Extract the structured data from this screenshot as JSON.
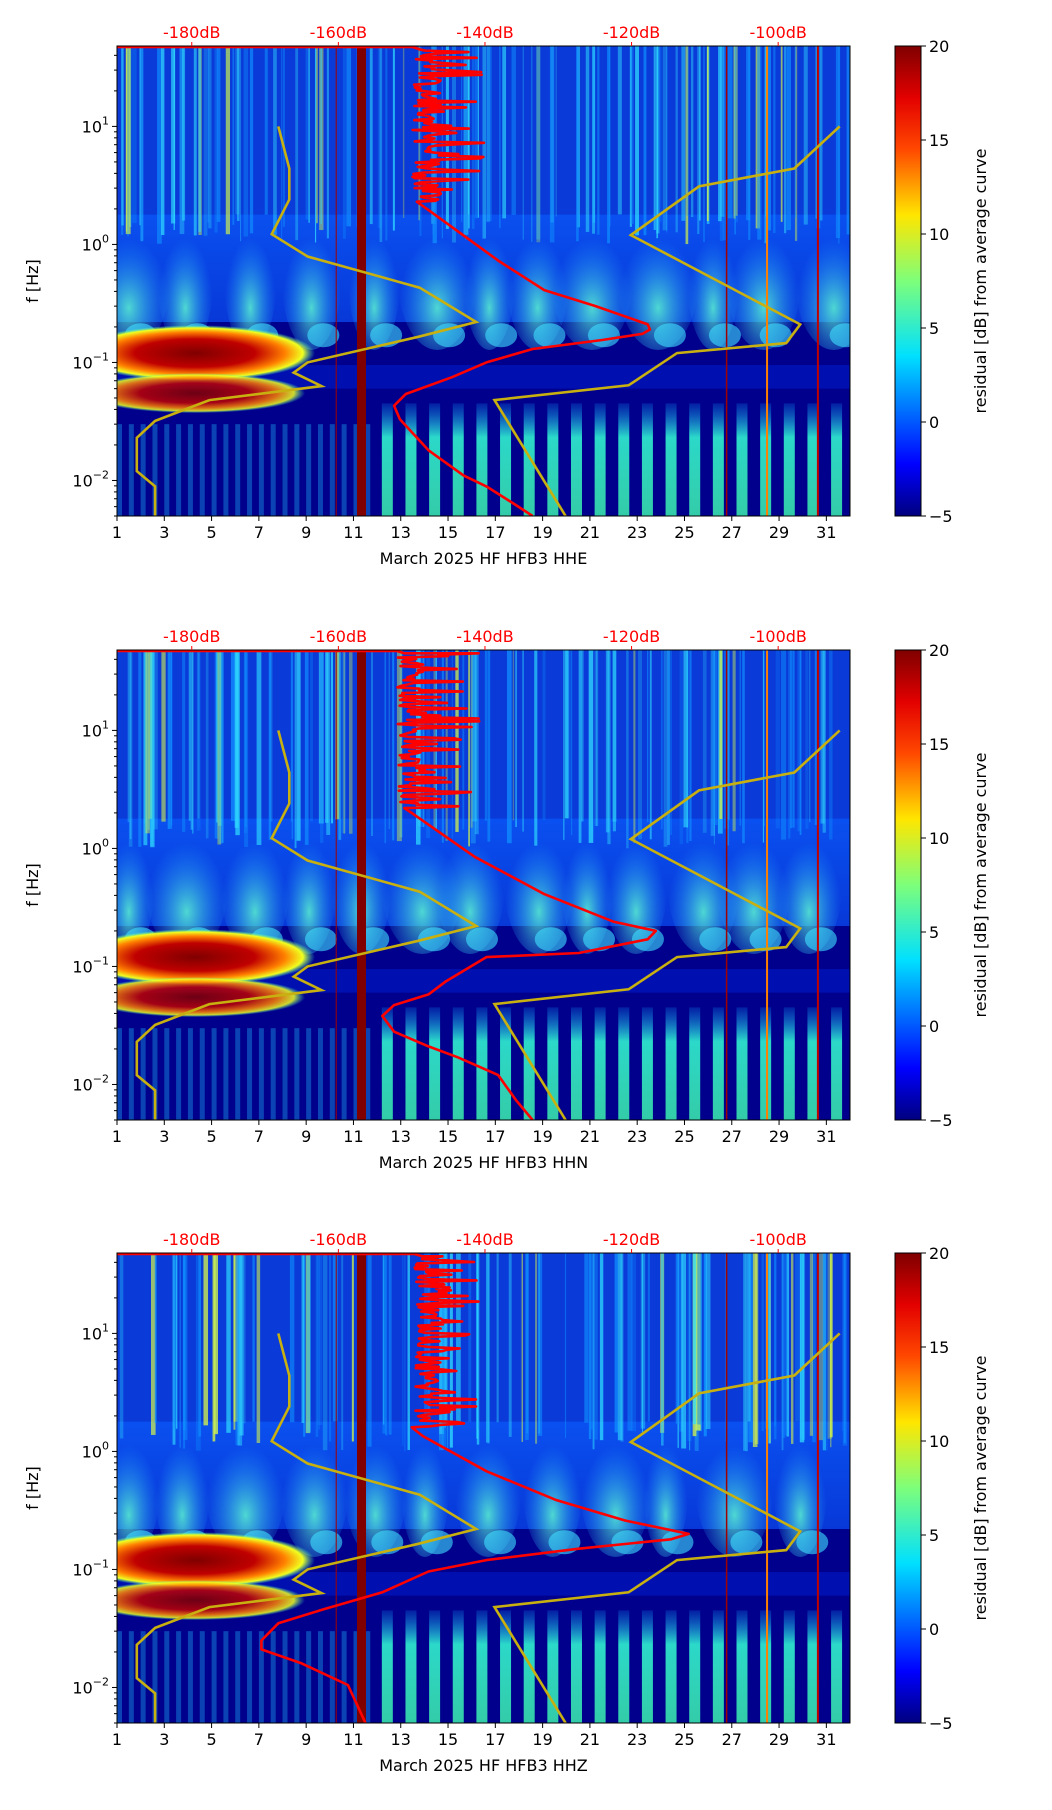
{
  "colors": {
    "psd": "#ff0000",
    "noise_model": "#c8b010",
    "top_axis_text": "#ff0000",
    "band": "#800000"
  },
  "chart_data": [
    {
      "type": "heatmap",
      "panel": "HHE",
      "xlabel": "March 2025 HF HFB3  HHE",
      "ylabel": "f [Hz]",
      "xlim": [
        1,
        32
      ],
      "ylim": [
        0.005,
        48
      ],
      "yscale": "log",
      "x_ticks": [
        1,
        3,
        5,
        7,
        9,
        11,
        13,
        15,
        17,
        19,
        21,
        23,
        25,
        27,
        29,
        31
      ],
      "x_tick_labels": [
        "1",
        "3",
        "5",
        "7",
        "9",
        "11",
        "13",
        "15",
        "17",
        "19",
        "21",
        "23",
        "25",
        "27",
        "29",
        "31"
      ],
      "y_ticks": [
        0.01,
        0.1,
        1,
        10
      ],
      "y_tick_base": "10",
      "y_tick_exponents": [
        "−2",
        "−1",
        "0",
        "1"
      ],
      "top_axis": {
        "range_db": [
          -190.2,
          -90.2
        ],
        "ticks": [
          -180,
          -160,
          -140,
          -120,
          -100
        ],
        "labels": [
          "-180dB",
          "-160dB",
          "-140dB",
          "-120dB",
          "-100dB"
        ]
      },
      "colorbar": {
        "label": "residual [dB] from average curve",
        "range": [
          -5,
          20
        ],
        "ticks": [
          20,
          15,
          10,
          5,
          0,
          -5
        ],
        "tick_labels": [
          "20",
          "15",
          "10",
          "5",
          "0",
          "−5"
        ],
        "colormap": "jet"
      },
      "psd_noise": {
        "f_from": 45,
        "f_to": 2.3,
        "db_range": [
          -151.9,
          -139.8
        ]
      },
      "series": [
        {
          "name": "psd",
          "points": [
            [
              2.3,
              -149.3
            ],
            [
              1.8,
              -146.9
            ],
            [
              0.73,
              -138.2
            ],
            [
              0.41,
              -131.9
            ],
            [
              0.3,
              -124.9
            ],
            [
              0.21,
              -117.8
            ],
            [
              0.19,
              -117.5
            ],
            [
              0.175,
              -118.5
            ],
            [
              0.155,
              -124
            ],
            [
              0.13,
              -133.5
            ],
            [
              0.1,
              -139.8
            ],
            [
              0.075,
              -144.5
            ],
            [
              0.054,
              -150.8
            ],
            [
              0.043,
              -152.4
            ],
            [
              0.033,
              -151.6
            ],
            [
              0.018,
              -147.7
            ],
            [
              0.011,
              -142.9
            ],
            [
              0.0089,
              -139.8
            ],
            [
              0.0062,
              -135.8
            ],
            [
              0.005,
              -133.5
            ]
          ]
        },
        {
          "name": "low noise model",
          "points": [
            [
              10,
              -168.2
            ],
            [
              4.4,
              -166.7
            ],
            [
              2.4,
              -166.7
            ],
            [
              1.22,
              -169.1
            ],
            [
              0.79,
              -164.2
            ],
            [
              0.43,
              -148.9
            ],
            [
              0.22,
              -141.2
            ],
            [
              0.165,
              -149.1
            ],
            [
              0.1,
              -164.2
            ],
            [
              0.082,
              -166.1
            ],
            [
              0.063,
              -162.3
            ],
            [
              0.048,
              -177.6
            ],
            [
              0.032,
              -185.0
            ],
            [
              0.023,
              -187.5
            ],
            [
              0.012,
              -187.5
            ],
            [
              0.0089,
              -185.0
            ],
            [
              0.005,
              -185.0
            ]
          ]
        },
        {
          "name": "high noise model",
          "points": [
            [
              10,
              -91.6
            ],
            [
              4.4,
              -97.8
            ],
            [
              3.1,
              -110.8
            ],
            [
              1.2,
              -120.1
            ],
            [
              0.21,
              -97.0
            ],
            [
              0.146,
              -98.9
            ],
            [
              0.12,
              -113.8
            ],
            [
              0.064,
              -120.4
            ],
            [
              0.048,
              -138.7
            ],
            [
              0.005,
              -129.0
            ]
          ]
        }
      ]
    },
    {
      "type": "heatmap",
      "panel": "HHN",
      "xlabel": "March 2025 HF HFB3  HHN",
      "ylabel": "f [Hz]",
      "xlim": [
        1,
        32
      ],
      "ylim": [
        0.005,
        48
      ],
      "yscale": "log",
      "x_ticks": [
        1,
        3,
        5,
        7,
        9,
        11,
        13,
        15,
        17,
        19,
        21,
        23,
        25,
        27,
        29,
        31
      ],
      "x_tick_labels": [
        "1",
        "3",
        "5",
        "7",
        "9",
        "11",
        "13",
        "15",
        "17",
        "19",
        "21",
        "23",
        "25",
        "27",
        "29",
        "31"
      ],
      "y_ticks": [
        0.01,
        0.1,
        1,
        10
      ],
      "y_tick_base": "10",
      "y_tick_exponents": [
        "−2",
        "−1",
        "0",
        "1"
      ],
      "top_axis": {
        "range_db": [
          -190.2,
          -90.2
        ],
        "ticks": [
          -180,
          -160,
          -140,
          -120,
          -100
        ],
        "labels": [
          "-180dB",
          "-160dB",
          "-140dB",
          "-120dB",
          "-100dB"
        ]
      },
      "colorbar": {
        "label": "residual [dB] from average curve",
        "range": [
          -5,
          20
        ],
        "ticks": [
          20,
          15,
          10,
          5,
          0,
          -5
        ],
        "tick_labels": [
          "20",
          "15",
          "10",
          "5",
          "0",
          "−5"
        ],
        "colormap": "jet"
      },
      "psd_noise": {
        "f_from": 45,
        "f_to": 2.2,
        "db_range": [
          -154,
          -139.8
        ]
      },
      "series": [
        {
          "name": "psd",
          "points": [
            [
              2.2,
              -151
            ],
            [
              2.0,
              -150
            ],
            [
              0.85,
              -141.4
            ],
            [
              0.41,
              -131.9
            ],
            [
              0.24,
              -122.5
            ],
            [
              0.2,
              -116.7
            ],
            [
              0.17,
              -117.8
            ],
            [
              0.13,
              -127.2
            ],
            [
              0.12,
              -139.8
            ],
            [
              0.075,
              -145.3
            ],
            [
              0.058,
              -147.7
            ],
            [
              0.047,
              -152.4
            ],
            [
              0.038,
              -154
            ],
            [
              0.028,
              -152.4
            ],
            [
              0.021,
              -147.7
            ],
            [
              0.017,
              -143.7
            ],
            [
              0.012,
              -138.2
            ],
            [
              0.0074,
              -135.8
            ],
            [
              0.005,
              -133.5
            ]
          ]
        },
        {
          "name": "low noise model",
          "points": [
            [
              10,
              -168.2
            ],
            [
              4.4,
              -166.7
            ],
            [
              2.4,
              -166.7
            ],
            [
              1.22,
              -169.1
            ],
            [
              0.79,
              -164.2
            ],
            [
              0.43,
              -148.9
            ],
            [
              0.22,
              -141.2
            ],
            [
              0.165,
              -149.1
            ],
            [
              0.1,
              -164.2
            ],
            [
              0.082,
              -166.1
            ],
            [
              0.063,
              -162.3
            ],
            [
              0.048,
              -177.6
            ],
            [
              0.032,
              -185.0
            ],
            [
              0.023,
              -187.5
            ],
            [
              0.012,
              -187.5
            ],
            [
              0.0089,
              -185.0
            ],
            [
              0.005,
              -185.0
            ]
          ]
        },
        {
          "name": "high noise model",
          "points": [
            [
              10,
              -91.6
            ],
            [
              4.4,
              -97.8
            ],
            [
              3.1,
              -110.8
            ],
            [
              1.2,
              -120.1
            ],
            [
              0.21,
              -97.0
            ],
            [
              0.146,
              -98.9
            ],
            [
              0.12,
              -113.8
            ],
            [
              0.064,
              -120.4
            ],
            [
              0.048,
              -138.7
            ],
            [
              0.005,
              -129.0
            ]
          ]
        }
      ]
    },
    {
      "type": "heatmap",
      "panel": "HHZ",
      "xlabel": "March 2025 HF HFB3  HHZ",
      "ylabel": "f [Hz]",
      "xlim": [
        1,
        32
      ],
      "ylim": [
        0.005,
        48
      ],
      "yscale": "log",
      "x_ticks": [
        1,
        3,
        5,
        7,
        9,
        11,
        13,
        15,
        17,
        19,
        21,
        23,
        25,
        27,
        29,
        31
      ],
      "x_tick_labels": [
        "1",
        "3",
        "5",
        "7",
        "9",
        "11",
        "13",
        "15",
        "17",
        "19",
        "21",
        "23",
        "25",
        "27",
        "29",
        "31"
      ],
      "y_ticks": [
        0.01,
        0.1,
        1,
        10
      ],
      "y_tick_base": "10",
      "y_tick_exponents": [
        "−2",
        "−1",
        "0",
        "1"
      ],
      "top_axis": {
        "range_db": [
          -190.2,
          -90.2
        ],
        "ticks": [
          -180,
          -160,
          -140,
          -120,
          -100
        ],
        "labels": [
          "-180dB",
          "-160dB",
          "-140dB",
          "-120dB",
          "-100dB"
        ]
      },
      "colorbar": {
        "label": "residual [dB] from average curve",
        "range": [
          -5,
          20
        ],
        "ticks": [
          20,
          15,
          10,
          5,
          0,
          -5
        ],
        "tick_labels": [
          "20",
          "15",
          "10",
          "5",
          "0",
          "−5"
        ],
        "colormap": "jet"
      },
      "psd_noise": {
        "f_from": 45,
        "f_to": 1.6,
        "db_range": [
          -151.6,
          -140.6
        ]
      },
      "series": [
        {
          "name": "psd",
          "points": [
            [
              1.6,
              -150
            ],
            [
              1.35,
              -148.5
            ],
            [
              0.68,
              -139.8
            ],
            [
              0.39,
              -130.4
            ],
            [
              0.26,
              -120.9
            ],
            [
              0.2,
              -112.2
            ],
            [
              0.18,
              -114.6
            ],
            [
              0.15,
              -127.2
            ],
            [
              0.12,
              -139.8
            ],
            [
              0.096,
              -147.7
            ],
            [
              0.064,
              -154
            ],
            [
              0.046,
              -162
            ],
            [
              0.035,
              -168.2
            ],
            [
              0.025,
              -170.5
            ],
            [
              0.021,
              -170.5
            ],
            [
              0.016,
              -165
            ],
            [
              0.0105,
              -158.7
            ],
            [
              0.005,
              -156.3
            ]
          ]
        },
        {
          "name": "low noise model",
          "points": [
            [
              10,
              -168.2
            ],
            [
              4.4,
              -166.7
            ],
            [
              2.4,
              -166.7
            ],
            [
              1.22,
              -169.1
            ],
            [
              0.79,
              -164.2
            ],
            [
              0.43,
              -148.9
            ],
            [
              0.22,
              -141.2
            ],
            [
              0.165,
              -149.1
            ],
            [
              0.1,
              -164.2
            ],
            [
              0.082,
              -166.1
            ],
            [
              0.063,
              -162.3
            ],
            [
              0.048,
              -177.6
            ],
            [
              0.032,
              -185.0
            ],
            [
              0.023,
              -187.5
            ],
            [
              0.012,
              -187.5
            ],
            [
              0.0089,
              -185.0
            ],
            [
              0.005,
              -185.0
            ]
          ]
        },
        {
          "name": "high noise model",
          "points": [
            [
              10,
              -91.6
            ],
            [
              4.4,
              -97.8
            ],
            [
              3.1,
              -110.8
            ],
            [
              1.2,
              -120.1
            ],
            [
              0.21,
              -97.0
            ],
            [
              0.146,
              -98.9
            ],
            [
              0.12,
              -113.8
            ],
            [
              0.064,
              -120.4
            ],
            [
              0.048,
              -138.7
            ],
            [
              0.005,
              -129.0
            ]
          ]
        }
      ]
    }
  ]
}
